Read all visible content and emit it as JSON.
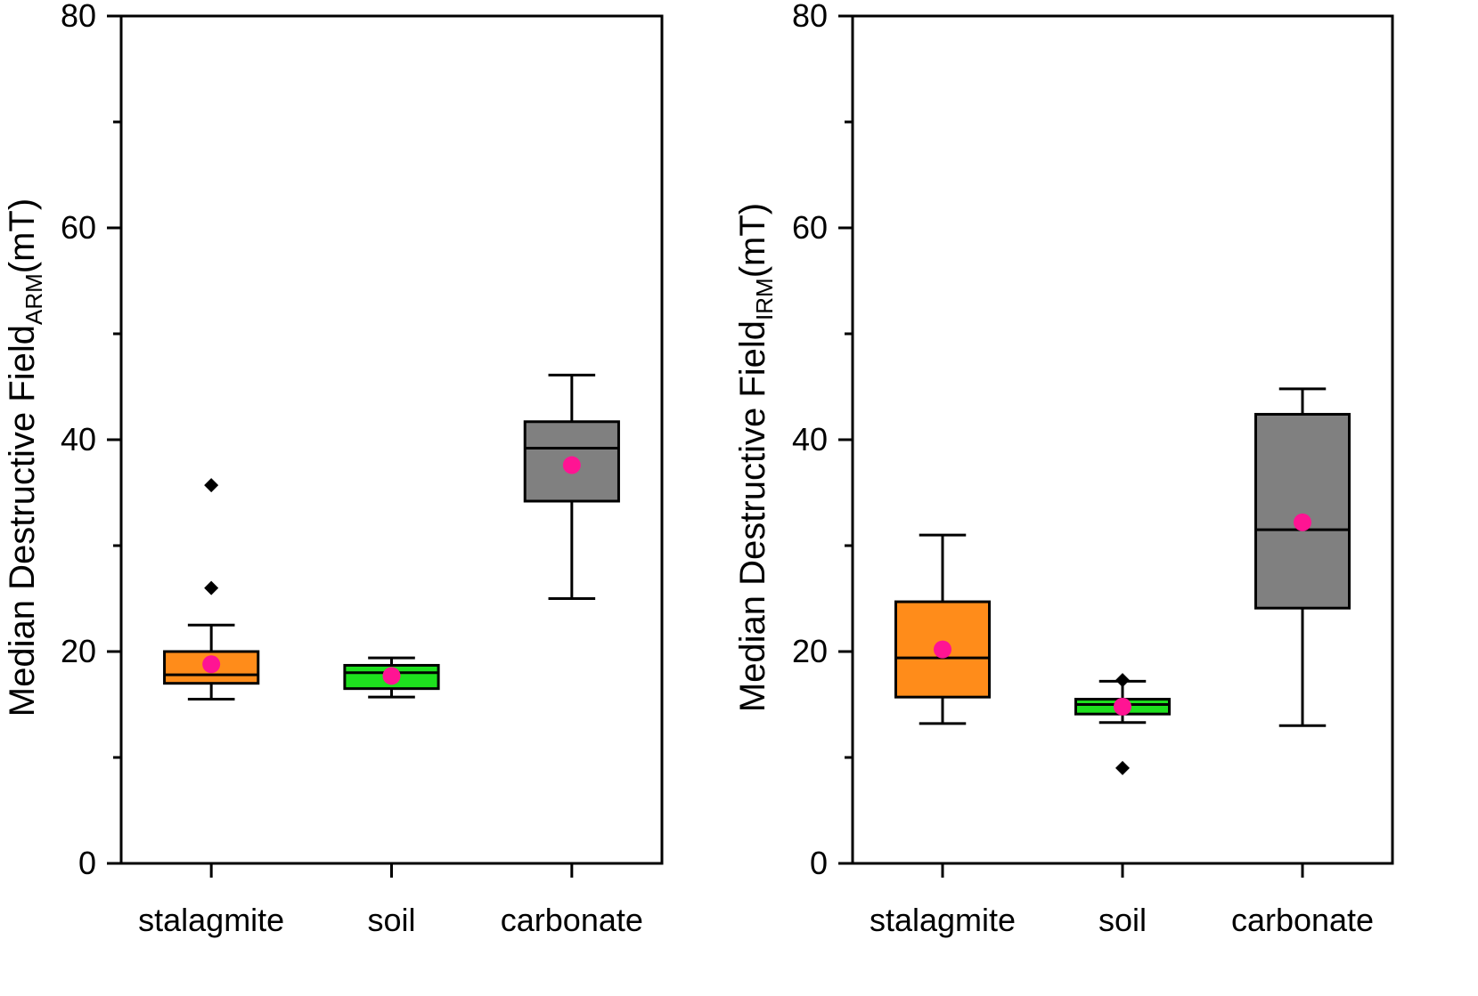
{
  "chart_data": [
    {
      "type": "box",
      "ylabel": "Median Destructive Field",
      "ylabel_subscript": "ARM",
      "ylabel_unit": "(mT)",
      "ylim": [
        0,
        80
      ],
      "yticks": [
        0,
        20,
        40,
        60,
        80
      ],
      "categories": [
        "stalagmite",
        "soil",
        "carbonate"
      ],
      "boxes": [
        {
          "name": "stalagmite",
          "color": "#FF8C1A",
          "whisker_low": 15.5,
          "q1": 17.0,
          "median": 17.8,
          "q3": 20.0,
          "whisker_high": 22.5,
          "mean": 18.8,
          "outliers": [
            26.0,
            35.7
          ]
        },
        {
          "name": "soil",
          "color": "#1EE01E",
          "whisker_low": 15.7,
          "q1": 16.5,
          "median": 18.0,
          "q3": 18.7,
          "whisker_high": 19.4,
          "mean": 17.7,
          "outliers": []
        },
        {
          "name": "carbonate",
          "color": "#808080",
          "whisker_low": 25.0,
          "q1": 34.2,
          "median": 39.2,
          "q3": 41.7,
          "whisker_high": 46.1,
          "mean": 37.6,
          "outliers": []
        }
      ]
    },
    {
      "type": "box",
      "ylabel": "Median Destructive Field",
      "ylabel_subscript": "IRM",
      "ylabel_unit": "(mT)",
      "ylim": [
        0,
        80
      ],
      "yticks": [
        0,
        20,
        40,
        60,
        80
      ],
      "categories": [
        "stalagmite",
        "soil",
        "carbonate"
      ],
      "boxes": [
        {
          "name": "stalagmite",
          "color": "#FF8C1A",
          "whisker_low": 13.2,
          "q1": 15.7,
          "median": 19.4,
          "q3": 24.7,
          "whisker_high": 31.0,
          "mean": 20.2,
          "outliers": []
        },
        {
          "name": "soil",
          "color": "#1EE01E",
          "whisker_low": 13.3,
          "q1": 14.1,
          "median": 15.0,
          "q3": 15.5,
          "whisker_high": 17.2,
          "mean": 14.8,
          "outliers": [
            9.0,
            17.3
          ]
        },
        {
          "name": "carbonate",
          "color": "#808080",
          "whisker_low": 13.0,
          "q1": 24.1,
          "median": 31.5,
          "q3": 42.4,
          "whisker_high": 44.8,
          "mean": 32.2,
          "outliers": []
        }
      ]
    }
  ],
  "colors": {
    "mean_marker": "#FF1493",
    "outlier_marker": "#000000",
    "axis": "#000000"
  }
}
